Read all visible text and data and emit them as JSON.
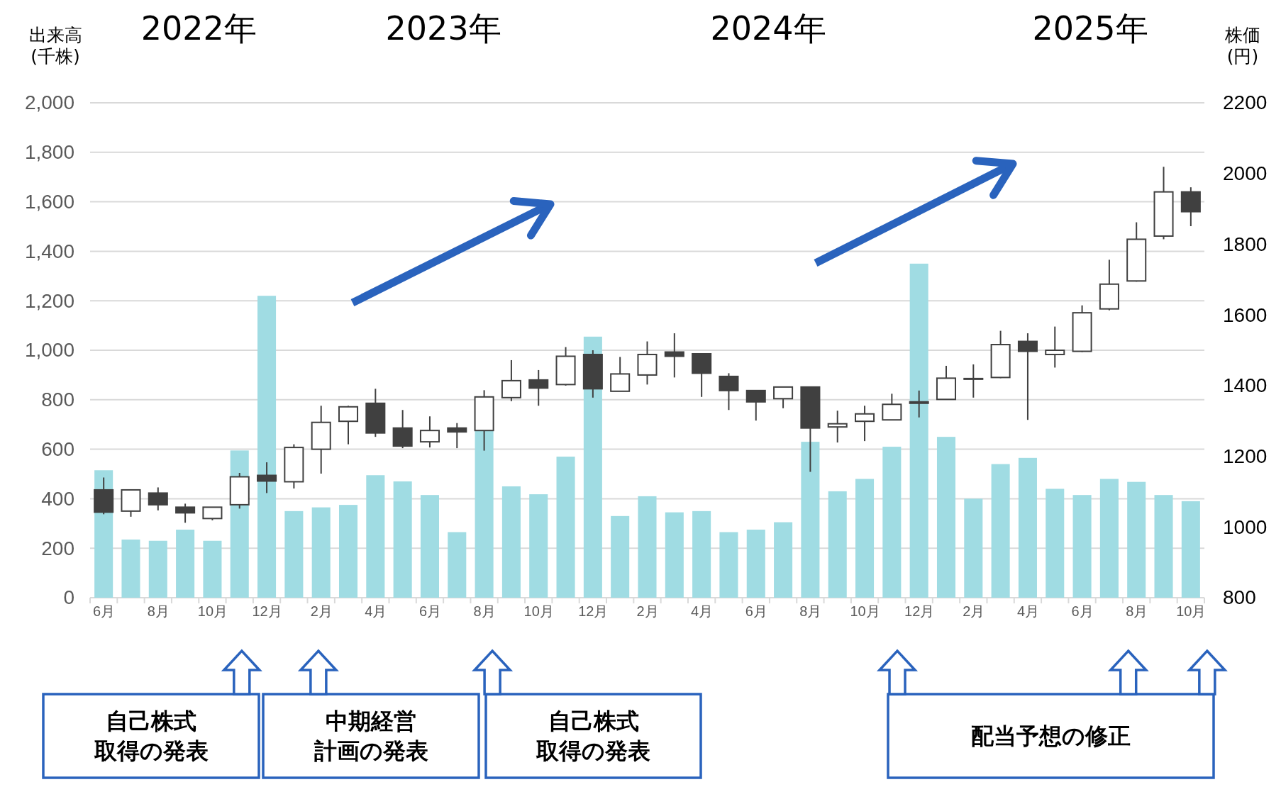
{
  "chart_data": {
    "type": "bar",
    "categories": [
      "6月",
      null,
      "8月",
      null,
      "10月",
      null,
      "12月",
      null,
      "2月",
      null,
      "4月",
      null,
      "6月",
      null,
      "8月",
      null,
      "10月",
      null,
      "12月",
      null,
      "2月",
      null,
      "4月",
      null,
      "6月",
      null,
      "8月",
      null,
      "10月",
      null,
      "12月",
      null,
      "2月",
      null,
      "4月",
      null,
      "6月",
      null,
      "8月",
      null,
      "10月"
    ],
    "series": [
      {
        "color": "#a0dce3",
        "values": [
          515,
          235,
          230,
          275,
          230,
          595,
          1220,
          350,
          365,
          375,
          495,
          470,
          415,
          265,
          680,
          450,
          418,
          570,
          1055,
          330,
          410,
          345,
          350,
          265,
          275,
          305,
          630,
          430,
          480,
          610,
          1350,
          650,
          400,
          540,
          565,
          440,
          415,
          480,
          468,
          415,
          390
        ]
      },
      {
        "type": "candlestick",
        "axis": "y2",
        "color": "#404040",
        "ohlc": [
          [
            1105,
            1140,
            1036,
            1042
          ],
          [
            1045,
            1105,
            1029,
            1105
          ],
          [
            1096,
            1112,
            1047,
            1063
          ],
          [
            1056,
            1066,
            1012,
            1040
          ],
          [
            1024,
            1056,
            1019,
            1056
          ],
          [
            1063,
            1153,
            1052,
            1142
          ],
          [
            1146,
            1183,
            1096,
            1130
          ],
          [
            1128,
            1234,
            1109,
            1225
          ],
          [
            1220,
            1343,
            1151,
            1296
          ],
          [
            1299,
            1343,
            1234,
            1340
          ],
          [
            1350,
            1391,
            1255,
            1266
          ],
          [
            1280,
            1331,
            1223,
            1229
          ],
          [
            1241,
            1313,
            1225,
            1273
          ],
          [
            1280,
            1294,
            1223,
            1269
          ],
          [
            1273,
            1387,
            1216,
            1368
          ],
          [
            1366,
            1472,
            1356,
            1414
          ],
          [
            1416,
            1444,
            1343,
            1393
          ],
          [
            1403,
            1509,
            1400,
            1483
          ],
          [
            1488,
            1500,
            1366,
            1391
          ],
          [
            1384,
            1481,
            1384,
            1433
          ],
          [
            1430,
            1525,
            1403,
            1488
          ],
          [
            1495,
            1548,
            1423,
            1483
          ],
          [
            1490,
            1490,
            1368,
            1435
          ],
          [
            1426,
            1435,
            1331,
            1386
          ],
          [
            1386,
            1386,
            1301,
            1354
          ],
          [
            1363,
            1396,
            1336,
            1396
          ],
          [
            1396,
            1396,
            1156,
            1280
          ],
          [
            1283,
            1329,
            1239,
            1292
          ],
          [
            1299,
            1343,
            1243,
            1320
          ],
          [
            1303,
            1377,
            1303,
            1347
          ],
          [
            1354,
            1386,
            1310,
            1350
          ],
          [
            1361,
            1456,
            1361,
            1421
          ],
          [
            1418,
            1460,
            1366,
            1420
          ],
          [
            1423,
            1555,
            1421,
            1516
          ],
          [
            1525,
            1548,
            1303,
            1497
          ],
          [
            1488,
            1567,
            1451,
            1500
          ],
          [
            1497,
            1627,
            1495,
            1606
          ],
          [
            1617,
            1756,
            1613,
            1687
          ],
          [
            1696,
            1862,
            1694,
            1814
          ],
          [
            1823,
            2019,
            1814,
            1948
          ],
          [
            1948,
            1961,
            1851,
            1892
          ]
        ]
      }
    ],
    "ylim": [
      0,
      2000
    ],
    "yticks": [
      0,
      200,
      400,
      600,
      800,
      {
        "value": 1000,
        "label": "1,000"
      },
      {
        "value": 1200,
        "label": "1,200"
      },
      {
        "value": 1400,
        "label": "1,400"
      },
      {
        "value": 1600,
        "label": "1,600"
      },
      {
        "value": 1800,
        "label": "1,800"
      },
      {
        "value": 2000,
        "label": "2,000"
      }
    ],
    "y2lim": [
      800,
      2200
    ],
    "y2ticks": [
      800,
      1000,
      1200,
      1400,
      1600,
      1800,
      2000,
      2200
    ],
    "ylabel": "出来高\n(千株)",
    "y2label": "株価\n(円)",
    "grid": "y",
    "annotations": [
      "2022年",
      "2023年",
      "2024年",
      "2025年",
      "自己株式取得の発表",
      "中期経営計画の発表",
      "自己株式取得の発表",
      "配当予想の修正"
    ]
  }
}
